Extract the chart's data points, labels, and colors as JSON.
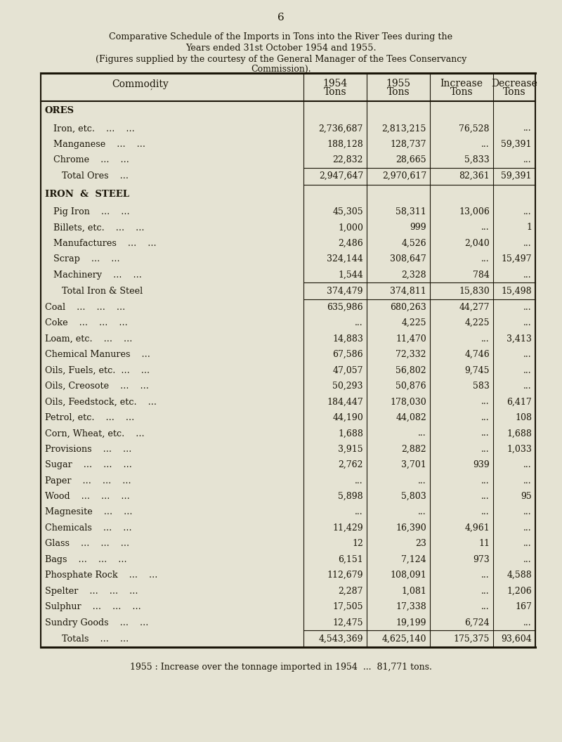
{
  "page_number": "6",
  "title_line1": "Comparative Schedule of the Imports in Tons into the River Tees during the",
  "title_line2": "Years ended 31st October 1954 and 1955.",
  "subtitle1": "(Figures supplied by the courtesy of the General Manager of the Tees Conservancy",
  "subtitle2": "Commission).",
  "bg_color": "#e5e3d3",
  "text_color": "#1a1508",
  "footer": "1955 : Increase over the tonnage imported in 1954  ...  81,771 tons.",
  "rows": [
    {
      "label": "ORES",
      "indent": 0,
      "bold": true,
      "section_header": true,
      "total": false,
      "c1954": "",
      "c1955": "",
      "inc": "",
      "dec": ""
    },
    {
      "label": "Iron, etc.    ...    ...",
      "indent": 1,
      "bold": false,
      "section_header": false,
      "total": false,
      "c1954": "2,736,687",
      "c1955": "2,813,215",
      "inc": "76,528",
      "dec": "..."
    },
    {
      "label": "Manganese    ...    ...",
      "indent": 1,
      "bold": false,
      "section_header": false,
      "total": false,
      "c1954": "188,128",
      "c1955": "128,737",
      "inc": "...",
      "dec": "59,391"
    },
    {
      "label": "Chrome    ...    ...",
      "indent": 1,
      "bold": false,
      "section_header": false,
      "total": false,
      "c1954": "22,832",
      "c1955": "28,665",
      "inc": "5,833",
      "dec": "..."
    },
    {
      "label": "Total Ores    ...",
      "indent": 2,
      "bold": false,
      "section_header": false,
      "total": true,
      "c1954": "2,947,647",
      "c1955": "2,970,617",
      "inc": "82,361",
      "dec": "59,391"
    },
    {
      "label": "IRON  &  STEEL",
      "indent": 0,
      "bold": true,
      "section_header": true,
      "total": false,
      "c1954": "",
      "c1955": "",
      "inc": "",
      "dec": ""
    },
    {
      "label": "Pig Iron    ...    ...",
      "indent": 1,
      "bold": false,
      "section_header": false,
      "total": false,
      "c1954": "45,305",
      "c1955": "58,311",
      "inc": "13,006",
      "dec": "..."
    },
    {
      "label": "Billets, etc.    ...    ...",
      "indent": 1,
      "bold": false,
      "section_header": false,
      "total": false,
      "c1954": "1,000",
      "c1955": "999",
      "inc": "...",
      "dec": "1"
    },
    {
      "label": "Manufactures    ...    ...",
      "indent": 1,
      "bold": false,
      "section_header": false,
      "total": false,
      "c1954": "2,486",
      "c1955": "4,526",
      "inc": "2,040",
      "dec": "..."
    },
    {
      "label": "Scrap    ...    ...",
      "indent": 1,
      "bold": false,
      "section_header": false,
      "total": false,
      "c1954": "324,144",
      "c1955": "308,647",
      "inc": "...",
      "dec": "15,497"
    },
    {
      "label": "Machinery    ...    ...",
      "indent": 1,
      "bold": false,
      "section_header": false,
      "total": false,
      "c1954": "1,544",
      "c1955": "2,328",
      "inc": "784",
      "dec": "..."
    },
    {
      "label": "Total Iron & Steel",
      "indent": 2,
      "bold": false,
      "section_header": false,
      "total": true,
      "c1954": "374,479",
      "c1955": "374,811",
      "inc": "15,830",
      "dec": "15,498"
    },
    {
      "label": "Coal    ...    ...    ...",
      "indent": 0,
      "bold": false,
      "section_header": false,
      "total": false,
      "c1954": "635,986",
      "c1955": "680,263",
      "inc": "44,277",
      "dec": "..."
    },
    {
      "label": "Coke    ...    ...    ...",
      "indent": 0,
      "bold": false,
      "section_header": false,
      "total": false,
      "c1954": "...",
      "c1955": "4,225",
      "inc": "4,225",
      "dec": "..."
    },
    {
      "label": "Loam, etc.    ...    ...",
      "indent": 0,
      "bold": false,
      "section_header": false,
      "total": false,
      "c1954": "14,883",
      "c1955": "11,470",
      "inc": "...",
      "dec": "3,413"
    },
    {
      "label": "Chemical Manures    ...",
      "indent": 0,
      "bold": false,
      "section_header": false,
      "total": false,
      "c1954": "67,586",
      "c1955": "72,332",
      "inc": "4,746",
      "dec": "..."
    },
    {
      "label": "Oils, Fuels, etc.  ...    ...",
      "indent": 0,
      "bold": false,
      "section_header": false,
      "total": false,
      "c1954": "47,057",
      "c1955": "56,802",
      "inc": "9,745",
      "dec": "..."
    },
    {
      "label": "Oils, Creosote    ...    ...",
      "indent": 0,
      "bold": false,
      "section_header": false,
      "total": false,
      "c1954": "50,293",
      "c1955": "50,876",
      "inc": "583",
      "dec": "..."
    },
    {
      "label": "Oils, Feedstock, etc.    ...",
      "indent": 0,
      "bold": false,
      "section_header": false,
      "total": false,
      "c1954": "184,447",
      "c1955": "178,030",
      "inc": "...",
      "dec": "6,417"
    },
    {
      "label": "Petrol, etc.    ...    ...",
      "indent": 0,
      "bold": false,
      "section_header": false,
      "total": false,
      "c1954": "44,190",
      "c1955": "44,082",
      "inc": "...",
      "dec": "108"
    },
    {
      "label": "Corn, Wheat, etc.    ...",
      "indent": 0,
      "bold": false,
      "section_header": false,
      "total": false,
      "c1954": "1,688",
      "c1955": "...",
      "inc": "...",
      "dec": "1,688"
    },
    {
      "label": "Provisions    ...    ...",
      "indent": 0,
      "bold": false,
      "section_header": false,
      "total": false,
      "c1954": "3,915",
      "c1955": "2,882",
      "inc": "...",
      "dec": "1,033"
    },
    {
      "label": "Sugar    ...    ...    ...",
      "indent": 0,
      "bold": false,
      "section_header": false,
      "total": false,
      "c1954": "2,762",
      "c1955": "3,701",
      "inc": "939",
      "dec": "..."
    },
    {
      "label": "Paper    ...    ...    ...",
      "indent": 0,
      "bold": false,
      "section_header": false,
      "total": false,
      "c1954": "...",
      "c1955": "...",
      "inc": "...",
      "dec": "..."
    },
    {
      "label": "Wood    ...    ...    ...",
      "indent": 0,
      "bold": false,
      "section_header": false,
      "total": false,
      "c1954": "5,898",
      "c1955": "5,803",
      "inc": "...",
      "dec": "95"
    },
    {
      "label": "Magnesite    ...    ...",
      "indent": 0,
      "bold": false,
      "section_header": false,
      "total": false,
      "c1954": "...",
      "c1955": "...",
      "inc": "...",
      "dec": "..."
    },
    {
      "label": "Chemicals    ...    ...",
      "indent": 0,
      "bold": false,
      "section_header": false,
      "total": false,
      "c1954": "11,429",
      "c1955": "16,390",
      "inc": "4,961",
      "dec": "..."
    },
    {
      "label": "Glass    ...    ...    ...",
      "indent": 0,
      "bold": false,
      "section_header": false,
      "total": false,
      "c1954": "12",
      "c1955": "23",
      "inc": "11",
      "dec": "..."
    },
    {
      "label": "Bags    ...    ...    ...",
      "indent": 0,
      "bold": false,
      "section_header": false,
      "total": false,
      "c1954": "6,151",
      "c1955": "7,124",
      "inc": "973",
      "dec": "..."
    },
    {
      "label": "Phosphate Rock    ...    ...",
      "indent": 0,
      "bold": false,
      "section_header": false,
      "total": false,
      "c1954": "112,679",
      "c1955": "108,091",
      "inc": "...",
      "dec": "4,588"
    },
    {
      "label": "Spelter    ...    ...    ...",
      "indent": 0,
      "bold": false,
      "section_header": false,
      "total": false,
      "c1954": "2,287",
      "c1955": "1,081",
      "inc": "...",
      "dec": "1,206"
    },
    {
      "label": "Sulphur    ...    ...    ...",
      "indent": 0,
      "bold": false,
      "section_header": false,
      "total": false,
      "c1954": "17,505",
      "c1955": "17,338",
      "inc": "...",
      "dec": "167"
    },
    {
      "label": "Sundry Goods    ...    ...",
      "indent": 0,
      "bold": false,
      "section_header": false,
      "total": false,
      "c1954": "12,475",
      "c1955": "19,199",
      "inc": "6,724",
      "dec": "..."
    },
    {
      "label": "Totals    ...    ...",
      "indent": 2,
      "bold": false,
      "section_header": false,
      "total": true,
      "c1954": "4,543,369",
      "c1955": "4,625,140",
      "inc": "175,375",
      "dec": "93,604"
    }
  ]
}
